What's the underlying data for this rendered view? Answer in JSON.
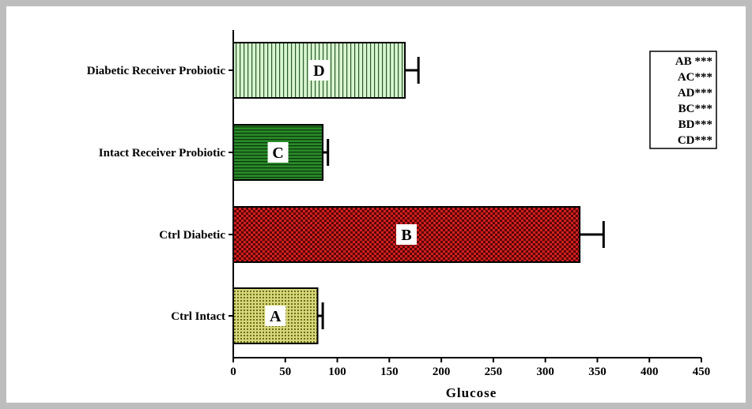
{
  "chart_data": {
    "type": "bar",
    "orientation": "horizontal",
    "categories": [
      "Ctrl Intact",
      "Ctrl Diabetic",
      "Intact Receiver Probiotic",
      "Diabetic Receiver Probiotic"
    ],
    "values": [
      81,
      333,
      86,
      165
    ],
    "errors": [
      5,
      23,
      5,
      13
    ],
    "bar_letters": [
      "A",
      "B",
      "C",
      "D"
    ],
    "bar_colors": [
      "#c8c85a",
      "#b81414",
      "#1e7a1e",
      "#c8f0c0"
    ],
    "bar_patterns": [
      "crosshatch-dots",
      "checker",
      "horizontal-lines",
      "vertical-lines"
    ],
    "xlabel": "Glucose",
    "ylabel": "",
    "title": "",
    "xlim": [
      0,
      450
    ],
    "xticks": [
      "0",
      "50",
      "100",
      "150",
      "200",
      "250",
      "300",
      "350",
      "400",
      "450"
    ],
    "grid": false,
    "legend_placement": "top-right",
    "legend": [
      "AB ***",
      "AC***",
      "AD***",
      "BC***",
      "BD***",
      "CD***"
    ]
  }
}
